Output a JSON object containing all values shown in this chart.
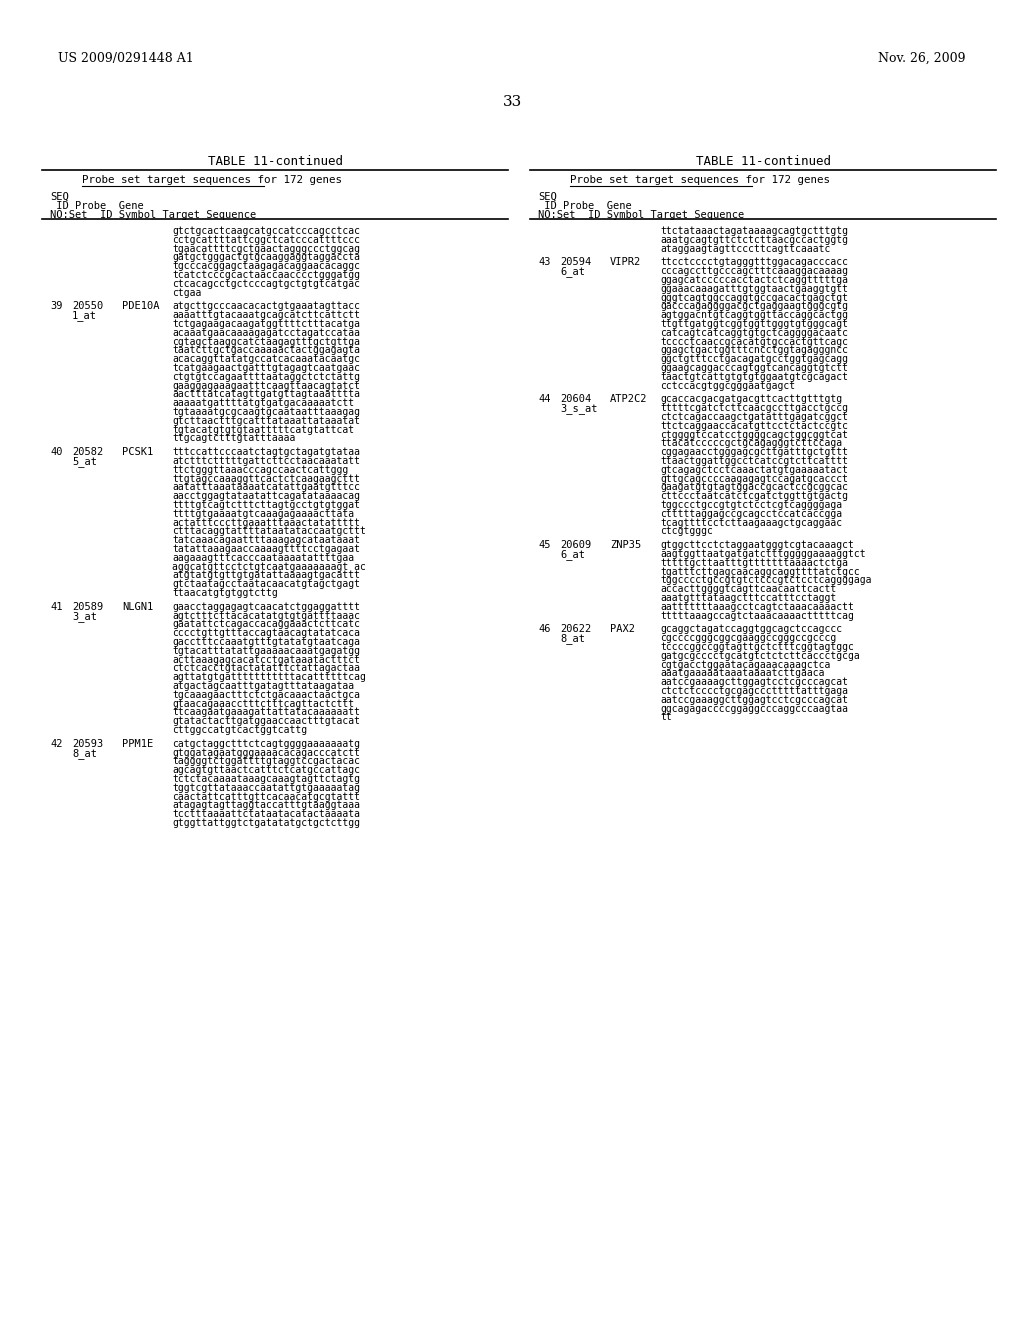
{
  "header_left": "US 2009/0291448 A1",
  "header_right": "Nov. 26, 2009",
  "page_number": "33",
  "table_title": "TABLE 11-continued",
  "subtitle": "Probe set target sequences for 172 genes",
  "bg_color": "#ffffff",
  "text_color": "#000000",
  "left_entries": [
    {
      "seq_no": "",
      "probe_set": "",
      "gene": "",
      "sequence": "gtctgcactcaagcatgccatcccagcctcac\ncctgcattttattcggctcatcccattttccc\ntgaacattttcgctgaactagggccctggcag\ngatgctgggactgtgcaaggaggtaggaccta\ntgcccacggagctaagagacaggaacacaggc\ntcatctcccgcactaaccaacccctgggatgg\nctcacagcctgctcccagtgctgtgtcatgac\nctgaa"
    },
    {
      "seq_no": "39",
      "probe_set": "20550\n1_at",
      "gene": "PDE10A",
      "sequence": "atgcttgcccaacacactgtgaaatagttacc\naaaatttgtacaaatgcagcatcttcattctt\ntctgagaagacaagatggttttctttacatga\nacaaatgaacaaaagagatcctagatccataa\ncgtagctaaggcatctaagagtttgctgttga\ntaatcttgctgaccaaaaactactggagagta\nacacaggttatatgccatcacaaatacaatgc\ntcatgaagaactgatttgtagagtcaatgaac\nctgtgtccagaattttaataggctctctattg\ngaaggagaaagaatttcaagttaacagtatct\naactttatcatagttgatgttagtaaatttta\naaaaatgattttatgtgatgacaaaaatctt\ntgtaaaatgcgcaagtgcaataatttaaagag\ngtcttaactttgcatttataaattataaatat\ntgtacatgtgtgtaatttttcatgtattcat\nttgcagtctttgtatttaaaa"
    },
    {
      "seq_no": "40",
      "probe_set": "20582\n5_at",
      "gene": "PCSK1",
      "sequence": "tttccattcccaatctagtgctagatgtataa\natctttctttttgattcttcctaacaaatatt\nttctgggttaaacccagccaactcattggg\nttgtagccaaaggttcactctcaagaagcttt\naatatttaaataaaatcatattgaatgtttcc\naacctggagtataatattcagatataaaacag\nttttgtcagtctttcttagtgcctgtgtggat\nttttgtgaaaatgtcaaagagaaaacttata\nactatttcccttgaaatttaaactatattttt\nctttacaggtattttataatataccaatgcttt\ntatcaaacagaattttaaagagcataataaat\ntatattaaagaaccaaaagttttcctgagaat\naagaaagtttcacccaataaaatattttgaa\naggcatgttcctctgtcaatgaaaaaaagt ac\natgtatgtgttgtgatattaaaagtgacattt\ngtctaatagcctaatacaacatgtagctgagt\nttaacatgtgtggtcttg"
    },
    {
      "seq_no": "41",
      "probe_set": "20589\n3_at",
      "gene": "NLGN1",
      "sequence": "gaacctaggagagtcaacatctggaggatttt\nagtctttcttacacatatgtgtgattttaaac\ngaatattctcagaccacaggaaactcttcatc\ncccctgttgtttaccagtaacagtatatcaca\ngacctttccaaatgtttgtatatgtaatcaga\ntgtacatttatattgaaaaacaaatgagatgg\nacttaaagagcacatcctgataaatactttct\nctctcacctgtactatatttctattagactaa\nagttatgtgatttttttttttacattttttcag\natgactagcaatttgatagtttataagataa\ntgcaaagaactttctctgacaaactaactgca\ngtaacagaaacctttctttcagttactcttt\nttcaagaatgaaagattattatacaaaaaatt\ngtatactacttgatggaaccaactttgtacat\ncttggccatgtcactggtcattg"
    },
    {
      "seq_no": "42",
      "probe_set": "20593\n8_at",
      "gene": "PPM1E",
      "sequence": "catgctaggctttctcagtggggaaaaaaatg\ngtggatagaatgggaaaacacagacccatctt\ntaggggtctggattttgtaggtccgactacac\nagcagtgttaactcatttctcatgccattagc\ntctctacaaaataaagcaaagtagttctagtg\ntggtcgttataaaccaatattgtgaaaaatag\ncaactattcatttgttcacaacatgcgtattt\natagagtagttaggtaccatttgtaaggtaaa\ntcctttaaaattctataatacatactaaaata\ngtggttattggtctgatatatgctgctcttgg"
    }
  ],
  "right_entries": [
    {
      "seq_no": "",
      "probe_set": "",
      "gene": "",
      "sequence": "ttctataaactagataaaagcagtgctttgtg\naaatgcagtgttctctcttaacgccactggtg\nataggaagtagttcccttcagttcaaatc"
    },
    {
      "seq_no": "43",
      "probe_set": "20594\n6_at",
      "gene": "VIPR2",
      "sequence": "ttcctcccctgtagggtttggacagacccacc\ncccagccttgcccagctttcaaaggacaaaag\nggagcatcccccacctactctcaggtttttga\nggaaacaaagatttgtggtaactgaaggtgtt\ngggtcagtggccaggtgccgacactgagctgt\ngacccagaggggacgctgaggaagtgggcgtg\nagtggacntgtcaggtggttaccaggcactgg\nttgttgatggtcggtggttgggtgtgggcagt\ncatcagtcatcaggtgtgctcaggggacaatc\ntcccctcaaccgcacatgtgccactgttcagc\nggagctgactggtttcncctggtagagggncc\nggctgtttcctgacagatgcctggtgagcagg\nggaagcaggacccagtggtcancaggtgtctt\ntaactgtcattgtgtgtggaatgtcgcagact\ncctccacgtggcgggaatgagct"
    },
    {
      "seq_no": "44",
      "probe_set": "20604\n3_s_at",
      "gene": "ATP2C2",
      "sequence": "gcaccacgacgatgacgttcacttgtttgtg\ntttttcgatctcttcaacgccttgacctgccg\nctctcagaccaagctgatatttgagatcggct\nttctcaggaaccacatgttcctctactccgtc\nctggggtccatcctggggcagctggcggtcat\nttacatcccccgctgcagagggtcttccaga\ncggagaacctgggagcgcttgatttgctgttt\nttaactggattggcctcatccgtcttcatttt\ngtcagagctcctcaaactatgtgaaaaatact\ngttgcagccccaagagagtccagatgcaccct\ngaagatgtgtagtggaccgcactccgcggcac\ncttccctaatcatctcgatctggttgtgactg\ntggccctgccgtgtctcctcgtcaggggaga\nctttttaggagccgcagcctccatcaccgga\ntcagttttcctcttaagaaagctgcaggaac\nctcgtgggc"
    },
    {
      "seq_no": "45",
      "probe_set": "20609\n6_at",
      "gene": "ZNP35",
      "sequence": "gtggcttcctctaggaatgggtcgtacaaagct\naagtggttaatgatgatctttgggggaaaaggtct\ntttttgcttaatttgtttttttaaaactctga\ntgatttcttgagcaacaggcaggttttatctgcc\ntggcccctgccgtgtctcccgtctcctcaggggaga\naccacttggggtcagttcaacaattcactt\naaatgtttataagctttccatttcctaggt\naatttttttaaagcctcagtctaaacaaaactt\ntttttaaagccagtctaaacaaaactttttcag"
    },
    {
      "seq_no": "46",
      "probe_set": "20622\n8_at",
      "gene": "PAX2",
      "sequence": "gcaggctagatccaggtggcagctccagccc\ncgccccgggcggcgaaggccgggccgcccg\ntccccggccggtagttgctctttcggtagtggc\ngatgcgcccctgcatgtctctcttcaccctgcga\ncgtgacctggaatacagaaacaaagctca\naaatgaaaaataaataaaatcttgaaca\naatccgaaaagcttggagtcctcgcccagcat\nctctctcccctgcgagccctttttatttgaga\naatccgaaaggcttggagtcctcgcccagcat\nggcagagaccccggaggcccaggcccaagtaa\ntt"
    }
  ]
}
